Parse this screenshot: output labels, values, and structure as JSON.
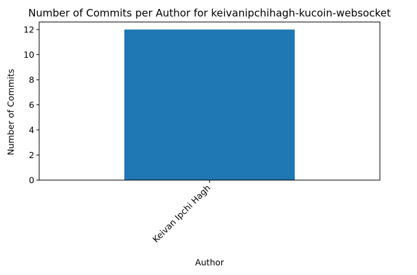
{
  "chart_data": {
    "type": "bar",
    "title": "Number of Commits per Author for keivanipchihagh-kucoin-websocket",
    "xlabel": "Author",
    "ylabel": "Number of Commits",
    "categories": [
      "Keivan Ipchi Hagh"
    ],
    "values": [
      12
    ],
    "ylim": [
      0,
      12.6
    ],
    "yticks": [
      0,
      2,
      4,
      6,
      8,
      10,
      12
    ],
    "bar_color": "#1f77b4",
    "grid": false,
    "legend": "none"
  }
}
